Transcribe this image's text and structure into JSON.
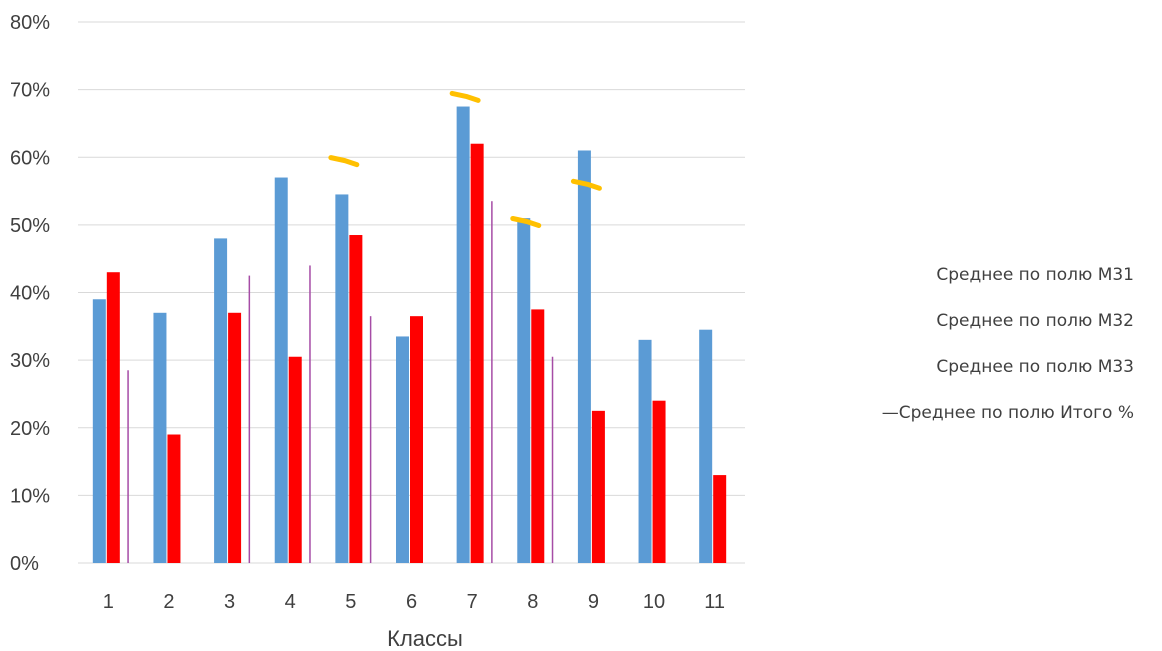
{
  "chart_data": {
    "type": "bar",
    "xlabel": "Классы",
    "ylabel": "",
    "ylim": [
      0,
      0.8
    ],
    "yticks": [
      "0%",
      "10%",
      "20%",
      "30%",
      "40%",
      "50%",
      "60%",
      "70%",
      "80%"
    ],
    "categories": [
      "1",
      "2",
      "3",
      "4",
      "5",
      "6",
      "7",
      "8",
      "9",
      "10",
      "11"
    ],
    "series": [
      {
        "name": "Среднее по полю М31",
        "color": "#5b9bd5",
        "values": [
          0.39,
          0.37,
          0.48,
          0.57,
          0.545,
          0.335,
          0.675,
          0.51,
          0.61,
          0.33,
          0.345
        ]
      },
      {
        "name": "Среднее по полю М32",
        "color": "#ff0000",
        "values": [
          0.43,
          0.19,
          0.37,
          0.305,
          0.485,
          0.365,
          0.62,
          0.375,
          0.225,
          0.24,
          0.13
        ]
      },
      {
        "name": "Среднее по полю М33",
        "color": "#a64ca6",
        "values": [
          0.285,
          0.0,
          0.425,
          0.44,
          0.365,
          0.0,
          0.535,
          0.305,
          0.0,
          0.0,
          0.0
        ]
      }
    ],
    "line_series": {
      "name": "Среднее по полю Итого %",
      "color": "#ffc000",
      "values": [
        null,
        null,
        null,
        null,
        0.595,
        null,
        0.69,
        0.505,
        0.56,
        null,
        null
      ]
    },
    "legend_labels": [
      "Среднее по полю М31",
      "Среднее по полю М32",
      "Среднее по полю М33",
      "—Среднее по полю Итого %"
    ],
    "legend_position": "right",
    "grid": true
  }
}
